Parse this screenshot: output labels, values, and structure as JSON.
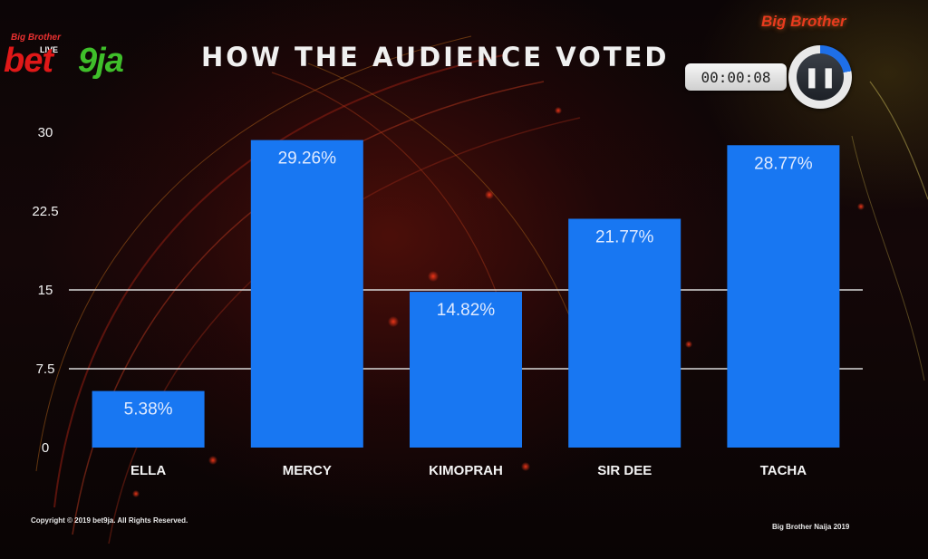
{
  "header": {
    "title": "HOW THE AUDIENCE VOTED",
    "brand_small": "Big Brother",
    "brand_live": "LIVE",
    "brand_bet": "bet",
    "brand_nine": "9ja",
    "bb_logo": "Big Brother"
  },
  "player": {
    "timer": "00:00:08",
    "pause_glyph": "❚❚",
    "progress_fraction": 0.22,
    "progress_color": "#1e6fe8"
  },
  "footer": {
    "copyright": "Copyright © 2019 bet9ja. All Rights Reserved.",
    "show": "Big Brother Naija 2019"
  },
  "colors": {
    "bar": "#1877f2",
    "gridline": "#d8d8d8"
  },
  "chart_data": {
    "type": "bar",
    "title": "HOW THE AUDIENCE VOTED",
    "xlabel": "",
    "ylabel": "",
    "categories": [
      "ELLA",
      "MERCY",
      "KIMOPRAH",
      "SIR DEE",
      "TACHA"
    ],
    "values": [
      5.38,
      29.26,
      14.82,
      21.77,
      28.77
    ],
    "data_labels": [
      "5.38%",
      "29.26%",
      "14.82%",
      "21.77%",
      "28.77%"
    ],
    "ylim": [
      0,
      30
    ],
    "yticks": [
      0,
      7.5,
      15,
      22.5,
      30
    ],
    "ytick_labels": [
      "0",
      "7.5",
      "15",
      "22.5",
      "30"
    ],
    "gridlines_at": [
      7.5,
      15
    ],
    "legend": "none"
  }
}
